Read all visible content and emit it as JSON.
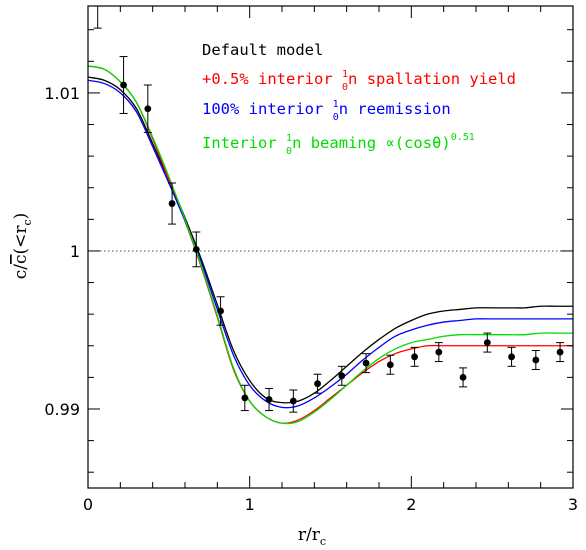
{
  "chart_data": {
    "type": "line",
    "title": "",
    "xlabel": "r/r",
    "xlabel_sub": "c",
    "ylabel_pre": "c/",
    "ylabel_bar": "c",
    "ylabel_post": "(<r",
    "ylabel_sub": "c",
    "ylabel_close": ")",
    "xlim": [
      0,
      3
    ],
    "ylim": [
      0.985,
      1.0155
    ],
    "xticks": [
      {
        "value": 0,
        "label": "0"
      },
      {
        "value": 1,
        "label": "1"
      },
      {
        "value": 2,
        "label": "2"
      },
      {
        "value": 3,
        "label": "3"
      }
    ],
    "yticks": [
      {
        "value": 0.99,
        "label": "0.99"
      },
      {
        "value": 1.0,
        "label": "1"
      },
      {
        "value": 1.01,
        "label": "1.01"
      }
    ],
    "reference_line": {
      "y": 1.0,
      "style": "dotted"
    },
    "legend": [
      {
        "text": "Default model",
        "color": "#000000"
      },
      {
        "text_pre": "+0.5% interior ",
        "sup": "1",
        "sub": "0",
        "text_post": "n spallation yield",
        "color": "#ff0000"
      },
      {
        "text_pre": "100% interior ",
        "sup": "1",
        "sub": "0",
        "text_post": "n reemission",
        "color": "#0000ff"
      },
      {
        "text_pre": "Interior ",
        "sup": "1",
        "sub": "0",
        "text_post": "n beaming ∝(cosθ)",
        "sup2": "0.51",
        "color": "#00dd00"
      }
    ],
    "series": [
      {
        "name": "Default model",
        "color": "#000000",
        "x": [
          0,
          0.1,
          0.2,
          0.3,
          0.4,
          0.5,
          0.6,
          0.7,
          0.8,
          0.9,
          1.0,
          1.1,
          1.2,
          1.3,
          1.4,
          1.5,
          1.6,
          1.7,
          1.8,
          1.9,
          2.0,
          2.1,
          2.2,
          2.3,
          2.4,
          2.5,
          2.6,
          2.7,
          2.8,
          2.9,
          3.0
        ],
        "y": [
          1.011,
          1.0108,
          1.0102,
          1.009,
          1.0068,
          1.0045,
          1.0021,
          0.9995,
          0.9966,
          0.9937,
          0.9918,
          0.9907,
          0.9904,
          0.9905,
          0.991,
          0.9918,
          0.9927,
          0.9936,
          0.9944,
          0.9951,
          0.9956,
          0.996,
          0.9962,
          0.9963,
          0.9964,
          0.9964,
          0.9964,
          0.9964,
          0.9965,
          0.9965,
          0.9965
        ]
      },
      {
        "name": "+0.5% interior spallation yield",
        "color": "#ff0000",
        "x": [
          0,
          0.1,
          0.2,
          0.3,
          0.4,
          0.5,
          0.6,
          0.7,
          0.8,
          0.9,
          1.0,
          1.1,
          1.2,
          1.3,
          1.4,
          1.5,
          1.6,
          1.7,
          1.8,
          1.9,
          2.0,
          2.1,
          2.2,
          2.3,
          2.4,
          2.5,
          2.6,
          2.7,
          2.8,
          2.9,
          3.0
        ],
        "y": [
          1.0117,
          1.0115,
          1.0107,
          1.0094,
          1.0071,
          1.0045,
          1.0019,
          0.999,
          0.9958,
          0.9925,
          0.9905,
          0.9895,
          0.9891,
          0.9893,
          0.9899,
          0.9907,
          0.9915,
          0.9923,
          0.993,
          0.9935,
          0.9938,
          0.994,
          0.994,
          0.994,
          0.994,
          0.994,
          0.994,
          0.994,
          0.994,
          0.994,
          0.994
        ]
      },
      {
        "name": "100% interior reemission",
        "color": "#0000ff",
        "x": [
          0,
          0.1,
          0.2,
          0.3,
          0.4,
          0.5,
          0.6,
          0.7,
          0.8,
          0.9,
          1.0,
          1.1,
          1.2,
          1.3,
          1.4,
          1.5,
          1.6,
          1.7,
          1.8,
          1.9,
          2.0,
          2.1,
          2.2,
          2.3,
          2.4,
          2.5,
          2.6,
          2.7,
          2.8,
          2.9,
          3.0
        ],
        "y": [
          1.0108,
          1.0106,
          1.01,
          1.0088,
          1.0066,
          1.0043,
          1.0019,
          0.9993,
          0.9963,
          0.9934,
          0.9915,
          0.9905,
          0.9901,
          0.9902,
          0.9907,
          0.9914,
          0.9922,
          0.9931,
          0.9939,
          0.9946,
          0.995,
          0.9953,
          0.9955,
          0.9956,
          0.9957,
          0.9957,
          0.9957,
          0.9957,
          0.9957,
          0.9957,
          0.9957
        ]
      },
      {
        "name": "Interior beaming (cosθ)^0.51",
        "color": "#00dd00",
        "x": [
          0,
          0.1,
          0.2,
          0.3,
          0.4,
          0.5,
          0.6,
          0.7,
          0.8,
          0.9,
          1.0,
          1.1,
          1.2,
          1.3,
          1.4,
          1.5,
          1.6,
          1.7,
          1.8,
          1.9,
          2.0,
          2.1,
          2.2,
          2.3,
          2.4,
          2.5,
          2.6,
          2.7,
          2.8,
          2.9,
          3.0
        ],
        "y": [
          1.0117,
          1.0115,
          1.0107,
          1.0094,
          1.0072,
          1.0047,
          1.002,
          0.9991,
          0.9959,
          0.9926,
          0.9905,
          0.9895,
          0.9891,
          0.9892,
          0.9898,
          0.9906,
          0.9915,
          0.9924,
          0.9932,
          0.9938,
          0.9942,
          0.9944,
          0.9946,
          0.9947,
          0.9947,
          0.9947,
          0.9947,
          0.9947,
          0.9948,
          0.9948,
          0.9948
        ]
      }
    ],
    "measurements": {
      "color": "#000000",
      "points": [
        {
          "x": 0.06,
          "y": 1.0158,
          "err": 0.0017
        },
        {
          "x": 0.22,
          "y": 1.0105,
          "err": 0.0018
        },
        {
          "x": 0.37,
          "y": 1.009,
          "err": 0.0015
        },
        {
          "x": 0.52,
          "y": 1.003,
          "err": 0.0013
        },
        {
          "x": 0.67,
          "y": 1.0001,
          "err": 0.0011
        },
        {
          "x": 0.82,
          "y": 0.9962,
          "err": 0.0009
        },
        {
          "x": 0.97,
          "y": 0.9907,
          "err": 0.0008
        },
        {
          "x": 1.12,
          "y": 0.9906,
          "err": 0.0007
        },
        {
          "x": 1.27,
          "y": 0.9905,
          "err": 0.0007
        },
        {
          "x": 1.42,
          "y": 0.9916,
          "err": 0.0006
        },
        {
          "x": 1.57,
          "y": 0.9921,
          "err": 0.0006
        },
        {
          "x": 1.72,
          "y": 0.9929,
          "err": 0.0006
        },
        {
          "x": 1.87,
          "y": 0.9928,
          "err": 0.0006
        },
        {
          "x": 2.02,
          "y": 0.9933,
          "err": 0.0006
        },
        {
          "x": 2.17,
          "y": 0.9936,
          "err": 0.0006
        },
        {
          "x": 2.32,
          "y": 0.992,
          "err": 0.0006
        },
        {
          "x": 2.47,
          "y": 0.9942,
          "err": 0.0006
        },
        {
          "x": 2.62,
          "y": 0.9933,
          "err": 0.0006
        },
        {
          "x": 2.77,
          "y": 0.9931,
          "err": 0.0006
        },
        {
          "x": 2.92,
          "y": 0.9936,
          "err": 0.0006
        }
      ]
    }
  }
}
